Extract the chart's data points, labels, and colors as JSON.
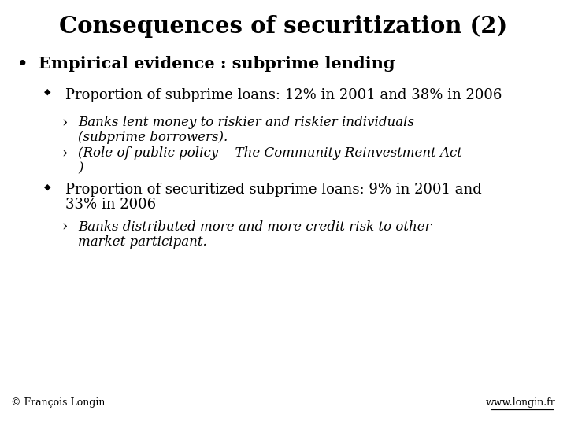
{
  "title": "Consequences of securitization (2)",
  "background_color": "#ffffff",
  "title_fontsize": 21,
  "title_fontweight": "bold",
  "title_fontfamily": "serif",
  "footer_left": "© François Longin",
  "footer_right": "www.longin.fr",
  "bullet1": "Empirical evidence : subprime lending",
  "sub1": "Proportion of subprime loans: 12% in 2001 and 38% in 2006",
  "sub1a_l1": "Banks lent money to riskier and riskier individuals",
  "sub1a_l2": "(subprime borrowers).",
  "sub1b_l1": "(Role of public policy  - The Community Reinvestment Act",
  "sub1b_l2": ")",
  "sub2_l1": "Proportion of securitized subprime loans: 9% in 2001 and",
  "sub2_l2": "33% in 2006",
  "sub2a_l1": "Banks distributed more and more credit risk to other",
  "sub2a_l2": "market participant."
}
